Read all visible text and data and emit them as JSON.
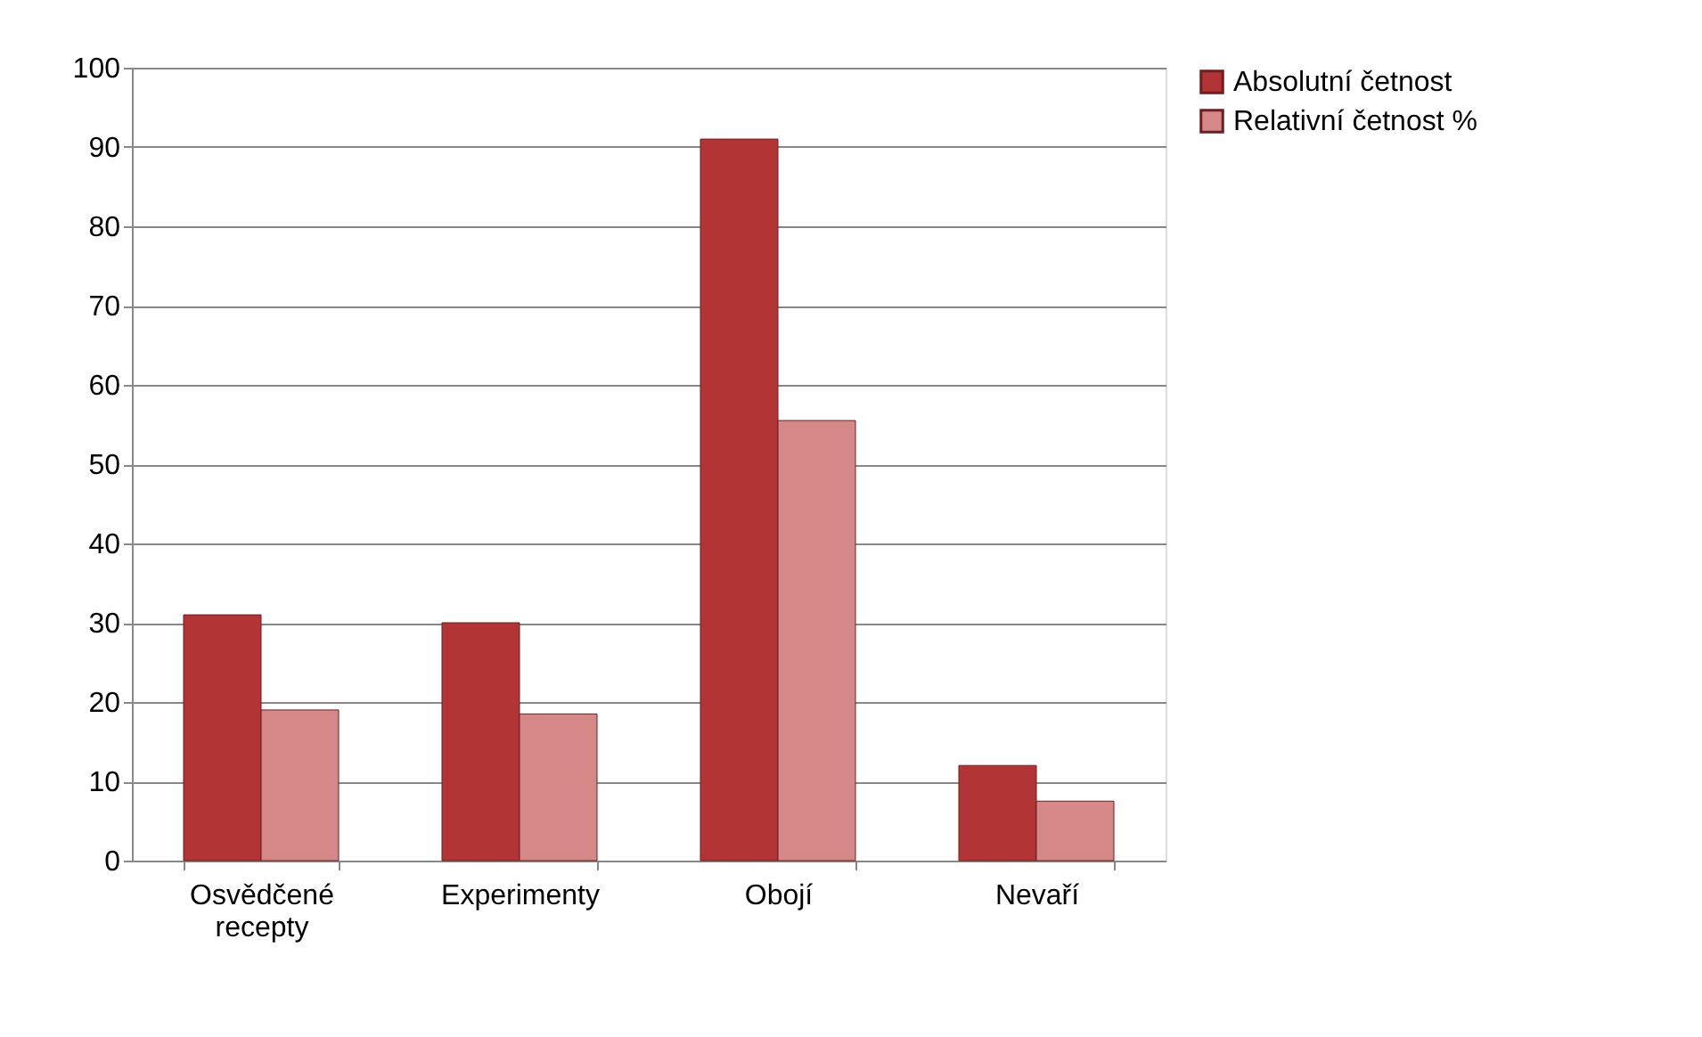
{
  "chart_data": {
    "type": "bar",
    "categories": [
      "Osvědčené recepty",
      "Experimenty",
      "Obojí",
      "Nevaří"
    ],
    "series": [
      {
        "name": "Absolutní četnost",
        "color": "#b23434",
        "values": [
          31,
          30,
          91,
          12
        ]
      },
      {
        "name": "Relativní četnost %",
        "color": "#d68787",
        "values": [
          19,
          18.5,
          55.5,
          7.5
        ]
      }
    ],
    "ylim": [
      0,
      100
    ],
    "yticks": [
      0,
      10,
      20,
      30,
      40,
      50,
      60,
      70,
      80,
      90,
      100
    ],
    "grid": "y",
    "legend": "right"
  }
}
